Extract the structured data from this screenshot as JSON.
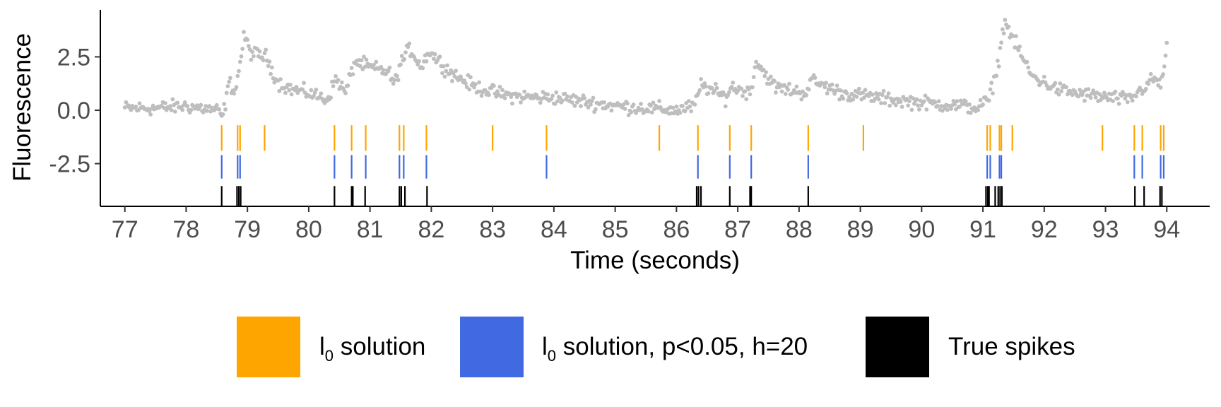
{
  "chart_data": {
    "type": "scatter",
    "title": "",
    "xlabel": "Time (seconds)",
    "ylabel": "Fluorescence",
    "xlim": [
      76.6,
      94.7
    ],
    "ylim": [
      -4.5,
      4.7
    ],
    "x_ticks": [
      77,
      78,
      79,
      80,
      81,
      82,
      83,
      84,
      85,
      86,
      87,
      88,
      89,
      90,
      91,
      92,
      93,
      94
    ],
    "y_ticks": [
      2.5,
      0.0,
      -2.5
    ],
    "y_tick_labels": [
      "2.5",
      "0.0",
      "-2.5"
    ],
    "grid": false,
    "legend_position": "bottom",
    "fluorescence": {
      "color": "#bebebe",
      "points_per_second": 50,
      "keyframes": [
        [
          77.0,
          0.1
        ],
        [
          77.5,
          0.1
        ],
        [
          78.0,
          0.2
        ],
        [
          78.5,
          0.0
        ],
        [
          78.6,
          -0.3
        ],
        [
          78.7,
          1.3
        ],
        [
          78.8,
          0.9
        ],
        [
          78.85,
          1.7
        ],
        [
          78.95,
          3.5
        ],
        [
          79.05,
          2.7
        ],
        [
          79.3,
          2.5
        ],
        [
          79.5,
          1.3
        ],
        [
          79.7,
          1.0
        ],
        [
          80.0,
          0.8
        ],
        [
          80.3,
          0.5
        ],
        [
          80.45,
          1.5
        ],
        [
          80.6,
          0.8
        ],
        [
          80.75,
          2.3
        ],
        [
          81.0,
          2.0
        ],
        [
          81.3,
          1.8
        ],
        [
          81.4,
          1.2
        ],
        [
          81.5,
          2.2
        ],
        [
          81.65,
          2.9
        ],
        [
          81.85,
          2.0
        ],
        [
          81.95,
          2.8
        ],
        [
          82.3,
          1.8
        ],
        [
          82.7,
          1.1
        ],
        [
          83.2,
          0.7
        ],
        [
          83.7,
          0.6
        ],
        [
          84.0,
          0.6
        ],
        [
          84.5,
          0.4
        ],
        [
          85.0,
          0.2
        ],
        [
          85.5,
          0.1
        ],
        [
          86.0,
          0.0
        ],
        [
          86.3,
          0.2
        ],
        [
          86.4,
          1.2
        ],
        [
          86.8,
          0.6
        ],
        [
          86.9,
          1.1
        ],
        [
          87.2,
          0.8
        ],
        [
          87.3,
          2.3
        ],
        [
          87.6,
          1.1
        ],
        [
          88.1,
          0.8
        ],
        [
          88.2,
          1.4
        ],
        [
          88.7,
          0.8
        ],
        [
          89.5,
          0.5
        ],
        [
          90.2,
          0.3
        ],
        [
          90.7,
          0.2
        ],
        [
          90.9,
          0.1
        ],
        [
          91.1,
          0.5
        ],
        [
          91.25,
          2.2
        ],
        [
          91.35,
          4.2
        ],
        [
          91.55,
          3.0
        ],
        [
          91.8,
          1.6
        ],
        [
          92.2,
          1.0
        ],
        [
          92.5,
          0.8
        ],
        [
          93.0,
          0.6
        ],
        [
          93.4,
          0.5
        ],
        [
          93.6,
          1.0
        ],
        [
          93.8,
          1.5
        ],
        [
          93.9,
          1.1
        ],
        [
          94.0,
          2.9
        ]
      ]
    },
    "series": [
      {
        "name": "l0 solution",
        "label_main": "l",
        "label_sub": "0",
        "label_rest": " solution",
        "color": "#ffa500",
        "spikes": [
          78.58,
          78.84,
          78.88,
          79.28,
          80.42,
          80.7,
          80.93,
          81.48,
          81.55,
          81.92,
          83.0,
          83.88,
          85.72,
          86.35,
          86.87,
          87.22,
          88.15,
          89.05,
          91.07,
          91.12,
          91.27,
          91.3,
          91.48,
          92.95,
          93.47,
          93.6,
          93.9,
          93.95
        ]
      },
      {
        "name": "l0 solution, p<0.05, h=20",
        "label_main": "l",
        "label_sub": "0",
        "label_rest": " solution, p<0.05, h=20",
        "color": "#4169e1",
        "spikes": [
          78.58,
          78.84,
          78.88,
          80.42,
          80.7,
          80.93,
          81.48,
          81.55,
          81.92,
          83.88,
          86.35,
          86.87,
          87.22,
          88.15,
          91.07,
          91.12,
          91.27,
          91.3,
          93.47,
          93.6,
          93.9,
          93.95
        ]
      },
      {
        "name": "True spikes",
        "label_main": "True spikes",
        "label_sub": "",
        "label_rest": "",
        "color": "#000000",
        "spikes": [
          78.58,
          78.83,
          78.86,
          78.89,
          80.42,
          80.7,
          80.72,
          80.92,
          81.48,
          81.51,
          81.57,
          81.93,
          86.33,
          86.36,
          86.4,
          86.87,
          87.2,
          87.22,
          88.15,
          91.05,
          91.08,
          91.1,
          91.2,
          91.25,
          91.28,
          91.31,
          93.48,
          93.63,
          93.89,
          93.92
        ]
      }
    ]
  }
}
